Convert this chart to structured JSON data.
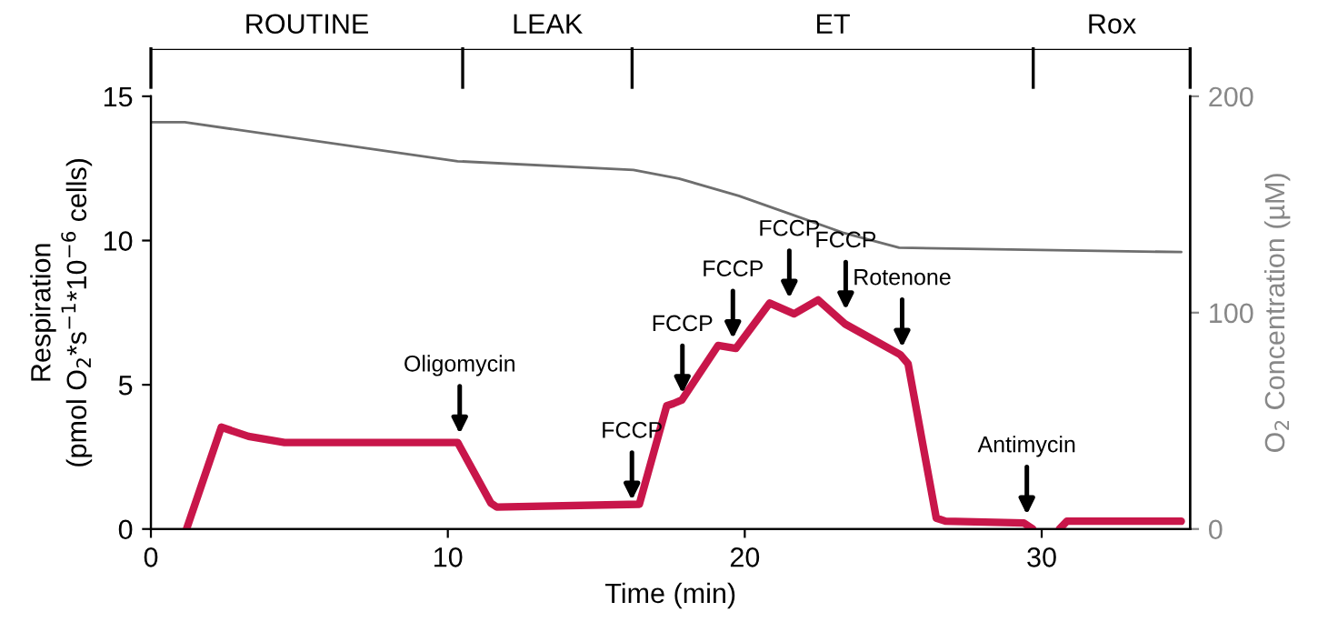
{
  "chart_data": {
    "type": "line",
    "xlabel": "Time (min)",
    "ylabel": "Respiration\n(pmol O$_{2}$*s$^{−1}$*10$^{−6}$ cells)",
    "y2label": "O$_{2}$ Concentration (µM)",
    "xlim": [
      0,
      35
    ],
    "xticks": [
      0,
      10,
      20,
      30
    ],
    "ylim": [
      0,
      15
    ],
    "yticks": [
      0,
      5,
      10,
      15
    ],
    "y2lim": [
      0,
      200
    ],
    "y2ticks": [
      0,
      100,
      200
    ],
    "series": [
      {
        "color": "#c8164a",
        "x": [
          1.2,
          2.37,
          3.29,
          4.5,
          10.33,
          11.45,
          11.65,
          16.45,
          17.37,
          17.6,
          17.88,
          19.1,
          19.7,
          20.84,
          21.66,
          22.47,
          23.39,
          25.23,
          25.5,
          26.45,
          26.76,
          29.4,
          29.7,
          30.2,
          30.6,
          30.85,
          34.7
        ],
        "values": [
          0,
          3.53,
          3.21,
          3.0,
          3.0,
          0.9,
          0.76,
          0.86,
          4.27,
          4.35,
          4.47,
          6.36,
          6.26,
          7.83,
          7.46,
          7.94,
          7.1,
          6.05,
          5.73,
          0.38,
          0.27,
          0.21,
          0,
          null,
          0,
          0.27,
          0.27
        ]
      },
      {
        "color": "#6e6e6e",
        "axis": "y2",
        "x": [
          0,
          1.14,
          10.33,
          16.25,
          17.78,
          19.8,
          21.45,
          23.3,
          25.2,
          34.7
        ],
        "values": [
          188,
          188,
          170,
          166,
          162,
          154,
          146,
          137,
          130,
          128
        ]
      }
    ],
    "annotations": [
      {
        "text": "Oligomycin",
        "x": 10.4,
        "y": 3.3
      },
      {
        "text": "FCCP",
        "x": 16.2,
        "y": 1.0
      },
      {
        "text": "FCCP",
        "x": 17.9,
        "y": 4.7
      },
      {
        "text": "FCCP",
        "x": 19.6,
        "y": 6.6
      },
      {
        "text": "FCCP",
        "x": 21.5,
        "y": 8.0
      },
      {
        "text": "FCCP",
        "x": 23.4,
        "y": 7.6
      },
      {
        "text": "Rotenone",
        "x": 25.3,
        "y": 6.3
      },
      {
        "text": "Antimycin",
        "x": 29.5,
        "y": 0.5
      },
      "ROUTINE",
      "LEAK",
      "ET",
      "Rox"
    ],
    "grid": false,
    "legend": false,
    "marker": "none",
    "line_style": "solid"
  }
}
